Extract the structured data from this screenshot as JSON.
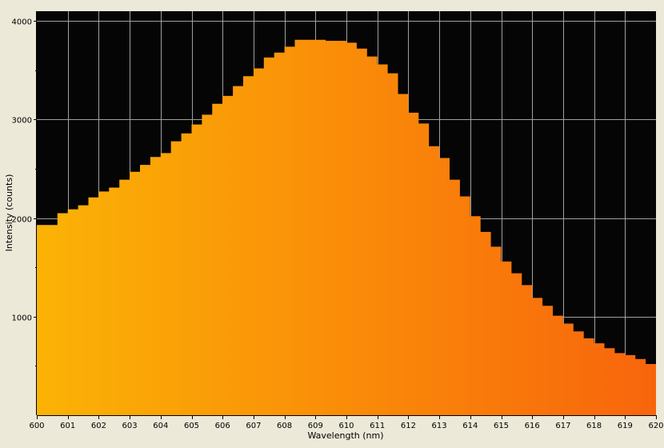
{
  "chart_data": {
    "type": "area",
    "title": "",
    "xlabel": "Wavelength (nm)",
    "ylabel": "Intensity (counts)",
    "xlim": [
      600,
      620
    ],
    "ylim": [
      0,
      4100
    ],
    "x_ticks": [
      600,
      601,
      602,
      603,
      604,
      605,
      606,
      607,
      608,
      609,
      610,
      611,
      612,
      613,
      614,
      615,
      616,
      617,
      618,
      619,
      620
    ],
    "x_tick_labels": [
      "600",
      "601",
      "602",
      "603",
      "604",
      "605",
      "606",
      "607",
      "608",
      "609",
      "610",
      "611",
      "612",
      "613",
      "614",
      "615",
      "616",
      "617",
      "618",
      "619",
      "620"
    ],
    "y_ticks": [
      1000,
      2000,
      3000,
      4000
    ],
    "y_tick_labels": [
      "1000",
      "2000",
      "3000",
      "4000"
    ],
    "grid": true,
    "legend": "none",
    "step": "histogram",
    "bin_width_nm": 0.3333,
    "x": [
      600.0,
      600.33,
      600.67,
      601.0,
      601.33,
      601.67,
      602.0,
      602.33,
      602.67,
      603.0,
      603.33,
      603.67,
      604.0,
      604.33,
      604.67,
      605.0,
      605.33,
      605.67,
      606.0,
      606.33,
      606.67,
      607.0,
      607.33,
      607.67,
      608.0,
      608.33,
      608.67,
      609.0,
      609.33,
      609.67,
      610.0,
      610.33,
      610.67,
      611.0,
      611.33,
      611.67,
      612.0,
      612.33,
      612.67,
      613.0,
      613.33,
      613.67,
      614.0,
      614.33,
      614.67,
      615.0,
      615.33,
      615.67,
      616.0,
      616.33,
      616.67,
      617.0,
      617.33,
      617.67,
      618.0,
      618.33,
      618.67,
      619.0,
      619.33,
      619.67
    ],
    "series": [
      {
        "values": [
          1930,
          1930,
          2050,
          2090,
          2130,
          2210,
          2270,
          2310,
          2390,
          2470,
          2540,
          2620,
          2660,
          2780,
          2860,
          2950,
          3050,
          3160,
          3240,
          3340,
          3440,
          3520,
          3630,
          3680,
          3740,
          3810,
          3810,
          3810,
          3800,
          3800,
          3780,
          3720,
          3640,
          3560,
          3470,
          3260,
          3070,
          2960,
          2730,
          2610,
          2390,
          2220,
          2020,
          1860,
          1710,
          1560,
          1440,
          1320,
          1190,
          1110,
          1010,
          930,
          850,
          780,
          730,
          680,
          630,
          610,
          570,
          520
        ]
      }
    ],
    "colors": {
      "plot_background": "#050505",
      "grid": "#a0a0a0",
      "fill_start": "#fbb305",
      "fill_end": "#f8650c",
      "window_background": "#ece9d8"
    }
  }
}
